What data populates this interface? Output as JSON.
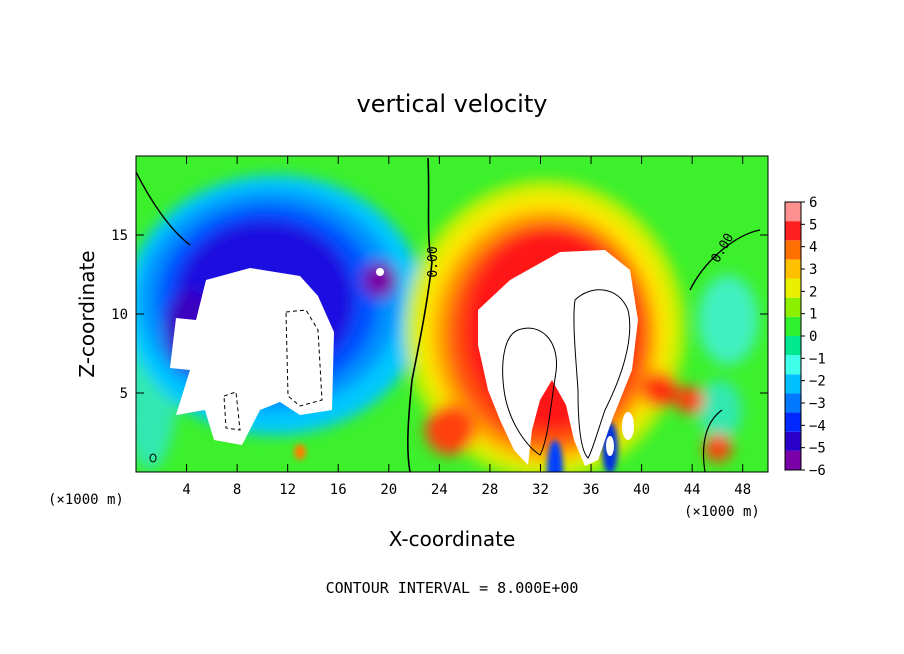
{
  "chart_data": {
    "type": "heatmap",
    "title": "vertical velocity",
    "xlabel": "X-coordinate",
    "ylabel": "Z-coordinate",
    "x_unit": "(×1000 m)",
    "y_unit": "(×1000 m)",
    "xlim": [
      0,
      50
    ],
    "ylim": [
      0,
      20
    ],
    "x_ticks": [
      4,
      8,
      12,
      16,
      20,
      24,
      28,
      32,
      36,
      40,
      44,
      48
    ],
    "y_ticks": [
      5,
      10,
      15
    ],
    "colorbar": {
      "min": -6,
      "max": 6,
      "ticks": [
        6,
        5,
        4,
        3,
        2,
        1,
        0,
        -1,
        -2,
        -3,
        -4,
        -5,
        -6
      ],
      "colors": [
        "#7a00a8",
        "#2a00c8",
        "#0028ff",
        "#0078ff",
        "#00c0ff",
        "#40ffe8",
        "#00e890",
        "#30f030",
        "#8cf000",
        "#e8f000",
        "#ffc000",
        "#ff7000",
        "#ff2020",
        "#ff9090"
      ]
    },
    "zero_contour_labels": [
      "0.00",
      "0.00"
    ],
    "contour_interval_text": "CONTOUR INTERVAL = 8.000E+00",
    "features": {
      "downdraft_core": {
        "x_range": [
          3,
          21
        ],
        "z_range": [
          2,
          13.5
        ],
        "sign": "negative"
      },
      "updraft_core": {
        "x_range": [
          26,
          40
        ],
        "z_range": [
          1,
          13
        ],
        "sign": "positive"
      }
    }
  }
}
